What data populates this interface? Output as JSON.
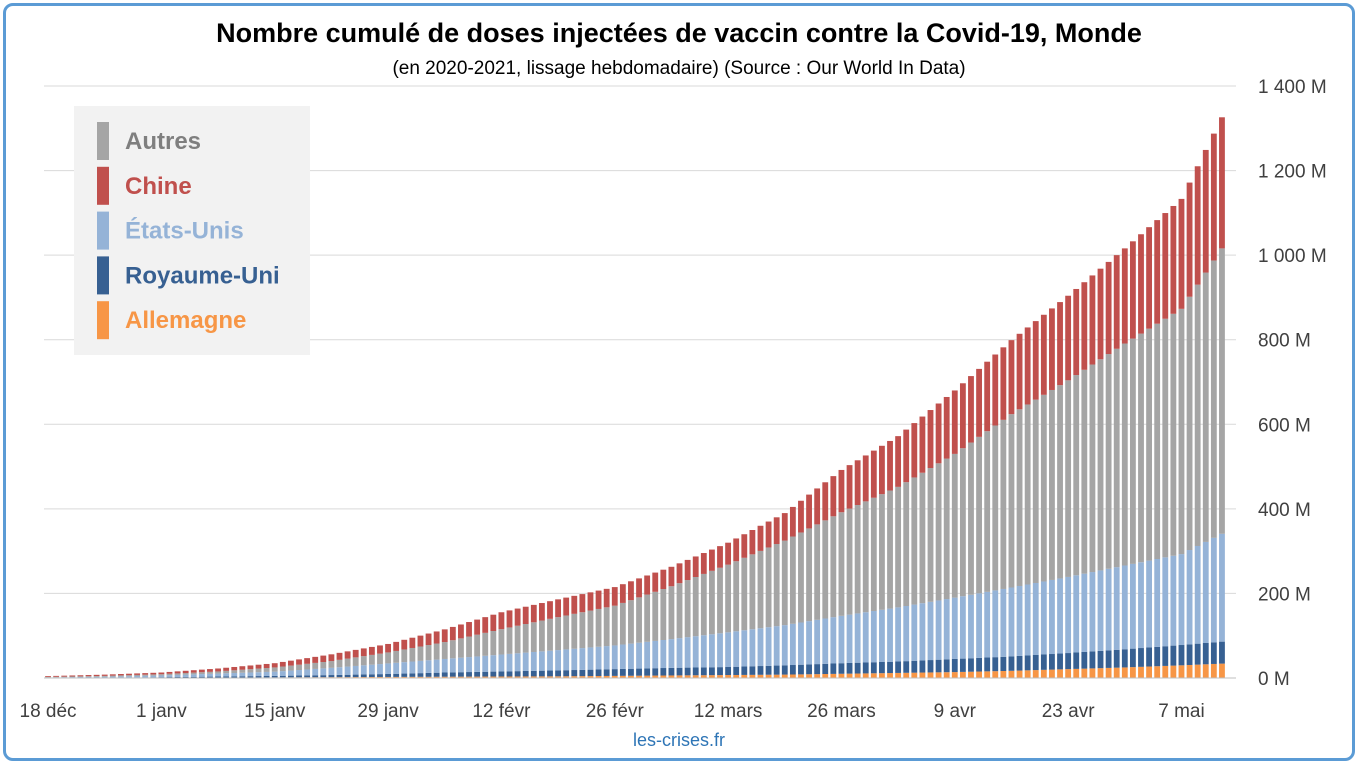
{
  "chart_data": {
    "type": "bar",
    "stacked": true,
    "title": "Nombre cumulé de doses injectées de vaccin contre la Covid-19, Monde",
    "subtitle": "(en 2020-2021, lissage hebdomadaire) (Source : Our World In Data)",
    "footer": "les-crises.fr",
    "x_tick_labels": [
      "18 déc",
      "1 janv",
      "15 janv",
      "29 janv",
      "12 févr",
      "26 févr",
      "12 mars",
      "26 mars",
      "9 avr",
      "23 avr",
      "7 mai"
    ],
    "x_range": [
      "18 déc",
      "12 mai"
    ],
    "y_tick_labels": [
      "0 M",
      "200 M",
      "400 M",
      "600 M",
      "800 M",
      "1 000 M",
      "1 200 M",
      "1 400 M"
    ],
    "ylim": [
      0,
      1400
    ],
    "y_unit": "M",
    "y_axis_side": "right",
    "grid": true,
    "legend_position": "top-left",
    "colors": {
      "Autres": "#a5a5a5",
      "Chine": "#c0504d",
      "États-Unis": "#95b3d7",
      "Royaume-Uni": "#376092",
      "Allemagne": "#f79646"
    },
    "legend": [
      "Autres",
      "Chine",
      "États-Unis",
      "Royaume-Uni",
      "Allemagne"
    ],
    "stack_order_bottom_to_top": [
      "Allemagne",
      "Royaume-Uni",
      "États-Unis",
      "Autres",
      "Chine"
    ],
    "sample_days": [
      0,
      7,
      14,
      21,
      28,
      35,
      42,
      49,
      56,
      63,
      70,
      77,
      84,
      91,
      98,
      105,
      112,
      119,
      126,
      133,
      140,
      145
    ],
    "sample_dates": [
      "18 déc",
      "25 déc",
      "1 janv",
      "8 janv",
      "15 janv",
      "22 janv",
      "29 janv",
      "5 févr",
      "12 févr",
      "19 févr",
      "26 févr",
      "5 mars",
      "12 mars",
      "19 mars",
      "26 mars",
      "2 avr",
      "9 avr",
      "16 avr",
      "23 avr",
      "30 avr",
      "7 mai",
      "12 mai"
    ],
    "series": [
      {
        "name": "Allemagne",
        "values": [
          0,
          0,
          0.5,
          1,
          1.5,
          2,
          2.5,
          3,
          3.5,
          4,
          5,
          6,
          7,
          8,
          10,
          12,
          14,
          17,
          21,
          25,
          30,
          34
        ]
      },
      {
        "name": "Royaume-Uni",
        "values": [
          0.5,
          1,
          1.5,
          2.5,
          3.5,
          5,
          7,
          10,
          12,
          14,
          16,
          18,
          19,
          22,
          25,
          27,
          31,
          34,
          38,
          43,
          48,
          52
        ]
      },
      {
        "name": "États-Unis",
        "values": [
          1,
          2,
          4,
          7,
          10,
          17,
          25,
          32,
          40,
          48,
          56,
          68,
          82,
          95,
          112,
          128,
          145,
          163,
          180,
          198,
          215,
          255
        ]
      },
      {
        "name": "Autres",
        "values": [
          1,
          2,
          3,
          5,
          10,
          16,
          26,
          40,
          60,
          78,
          94,
          125,
          160,
          200,
          245,
          285,
          340,
          410,
          465,
          525,
          580,
          675
        ]
      },
      {
        "name": "Chine",
        "values": [
          2,
          3,
          4,
          7,
          10,
          16,
          20,
          30,
          40,
          42,
          44,
          46,
          52,
          65,
          100,
          120,
          150,
          175,
          200,
          225,
          260,
          310
        ]
      }
    ]
  }
}
